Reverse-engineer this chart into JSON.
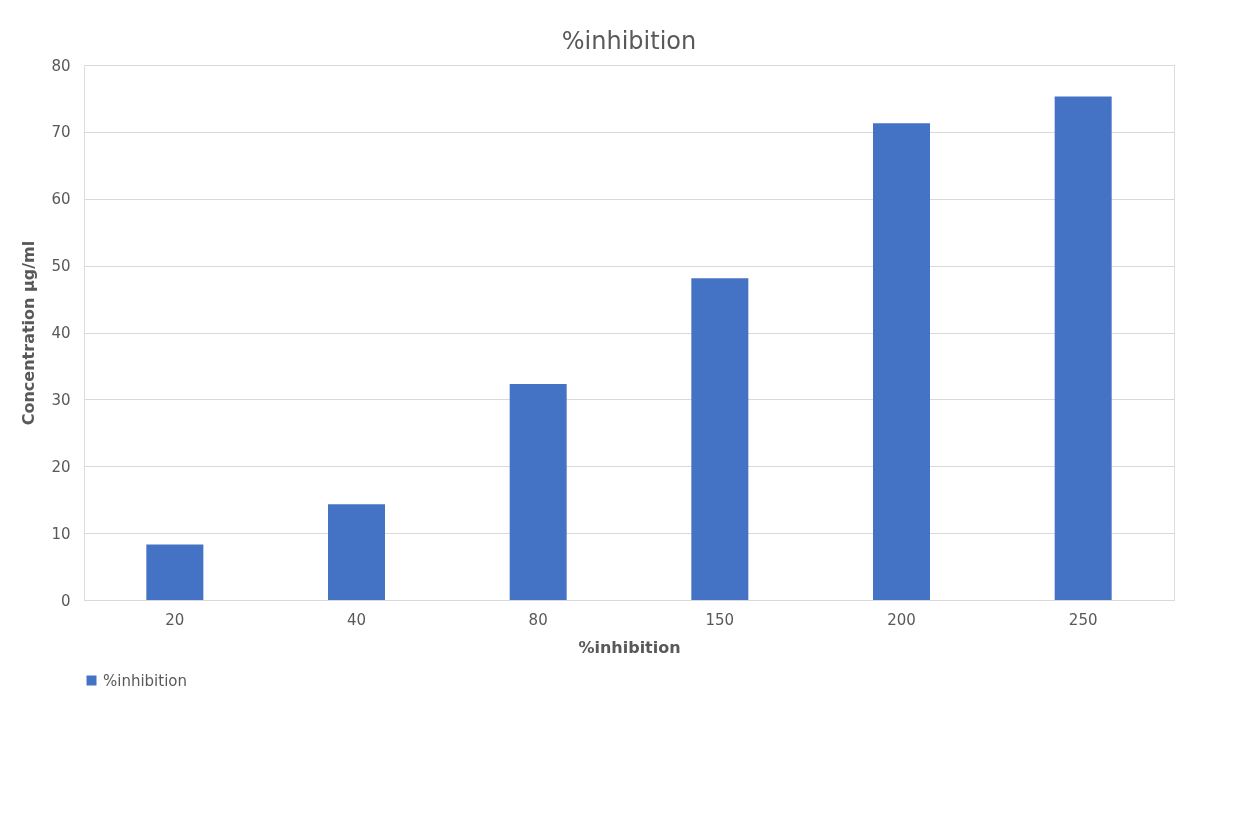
{
  "chart_data": {
    "type": "bar",
    "title": "%inhibition",
    "xlabel": "%inhibition",
    "ylabel": "Concentration µg/ml",
    "categories": [
      "20",
      "40",
      "80",
      "150",
      "200",
      "250"
    ],
    "series": [
      {
        "name": "%inhibition",
        "color": "#4472c4",
        "values": [
          8.3,
          14.3,
          32.3,
          48.1,
          71.3,
          75.3
        ]
      }
    ],
    "ylim": [
      0,
      80
    ],
    "yticks": [
      0,
      10,
      20,
      30,
      40,
      50,
      60,
      70,
      80
    ],
    "grid": "y",
    "legend": "bottom"
  }
}
